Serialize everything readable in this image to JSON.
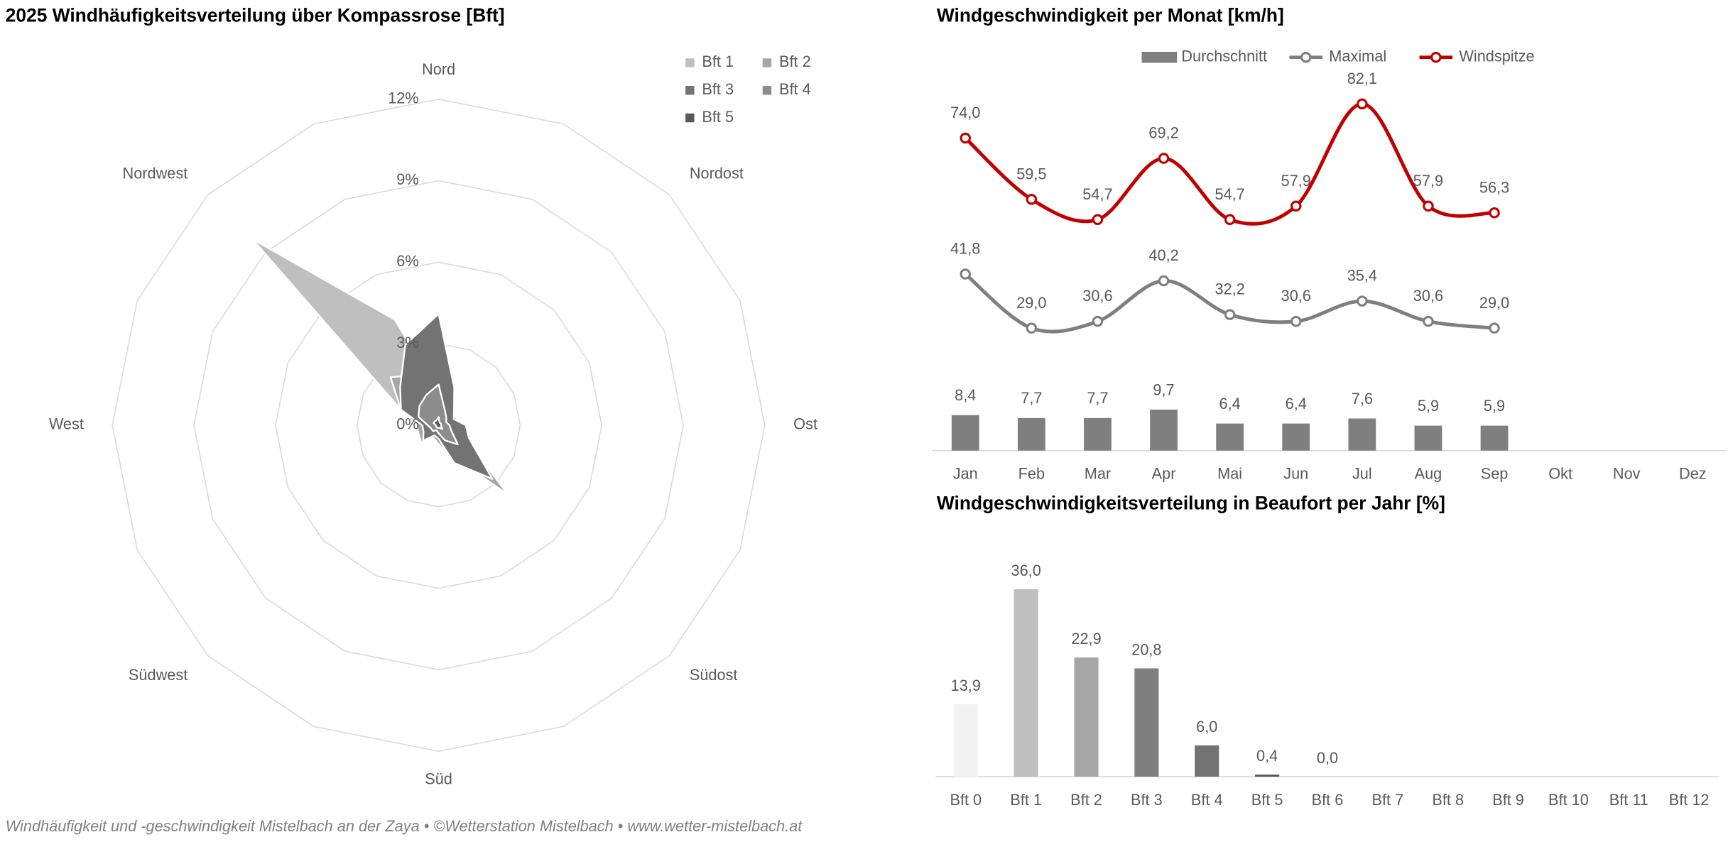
{
  "chart_data": [
    {
      "type": "radar",
      "title": "2025 Windhäufigkeitsverteilung über Kompassrose [Bft]",
      "categories": [
        "Nord",
        null,
        "Nordost",
        null,
        "Ost",
        null,
        "Südost",
        null,
        "Süd",
        null,
        "Südwest",
        null,
        "West",
        null,
        "Nordwest",
        null
      ],
      "series": [
        {
          "name": "Bft 1",
          "color": "#bfbfbf",
          "values": [
            1.2,
            0.8,
            0.6,
            0.5,
            0.6,
            0.8,
            2.5,
            0.8,
            0.6,
            0.5,
            0.8,
            0.6,
            0.8,
            1.5,
            9.7,
            4.2
          ]
        },
        {
          "name": "Bft 2",
          "color": "#a6a6a6",
          "values": [
            2.5,
            1.0,
            0.7,
            0.7,
            0.8,
            1.0,
            3.6,
            1.2,
            0.7,
            0.5,
            0.9,
            0.8,
            0.8,
            1.5,
            2.5,
            2.0
          ]
        },
        {
          "name": "Bft 3",
          "color": "#737373",
          "values": [
            4.1,
            1.5,
            0.8,
            0.6,
            1.0,
            1.2,
            2.8,
            1.5,
            0.5,
            0.4,
            0.8,
            0.6,
            0.6,
            1.5,
            2.0,
            3.2
          ]
        },
        {
          "name": "Bft 4",
          "color": "#8c8c8c",
          "values": [
            1.5,
            0.6,
            0.4,
            0.3,
            0.4,
            0.5,
            1.0,
            0.6,
            0.3,
            0.2,
            0.3,
            0.3,
            0.4,
            0.8,
            1.0,
            1.2
          ]
        },
        {
          "name": "Bft 5",
          "color": "#595959",
          "values": [
            0.3,
            0.1,
            0.1,
            0.1,
            0.1,
            0.1,
            0.2,
            0.1,
            0.1,
            0.1,
            0.1,
            0.1,
            0.1,
            0.2,
            0.2,
            0.2
          ]
        }
      ],
      "ylim": [
        0,
        12
      ],
      "yticks": [
        {
          "value": 0,
          "label": "0%"
        },
        {
          "value": 3,
          "label": "3%"
        },
        {
          "value": 6,
          "label": "6%"
        },
        {
          "value": 9,
          "label": "9%"
        },
        {
          "value": 12,
          "label": "12%"
        }
      ],
      "grid": true,
      "legend": "top-right"
    },
    {
      "type": "combo",
      "title": "Windgeschwindigkeit per Monat [km/h]",
      "categories": [
        "Jan",
        "Feb",
        "Mar",
        "Apr",
        "Mai",
        "Jun",
        "Jul",
        "Aug",
        "Sep",
        "Okt",
        "Nov",
        "Dez"
      ],
      "series": [
        {
          "name": "Durchschnitt",
          "type": "bar",
          "color": "#7f7f7f",
          "values": [
            8.4,
            7.7,
            7.7,
            9.7,
            6.4,
            6.4,
            7.6,
            5.9,
            5.9,
            null,
            null,
            null
          ],
          "value_labels": [
            "8,4",
            "7,7",
            "7,7",
            "9,7",
            "6,4",
            "6,4",
            "7,6",
            "5,9",
            "5,9",
            null,
            null,
            null
          ]
        },
        {
          "name": "Maximal",
          "type": "line",
          "color": "#7f7f7f",
          "values": [
            41.8,
            29.0,
            30.6,
            40.2,
            32.2,
            30.6,
            35.4,
            30.6,
            29.0,
            null,
            null,
            null
          ],
          "value_labels": [
            "41,8",
            "29,0",
            "30,6",
            "40,2",
            "32,2",
            "30,6",
            "35,4",
            "30,6",
            "29,0",
            null,
            null,
            null
          ]
        },
        {
          "name": "Windspitze",
          "type": "line",
          "color": "#c00000",
          "values": [
            74.0,
            59.5,
            54.7,
            69.2,
            54.7,
            57.9,
            82.1,
            57.9,
            56.3,
            null,
            null,
            null
          ],
          "value_labels": [
            "74,0",
            "59,5",
            "54,7",
            "69,2",
            "54,7",
            "57,9",
            "82,1",
            "57,9",
            "56,3",
            null,
            null,
            null
          ]
        }
      ],
      "ylim": [
        0,
        90
      ],
      "legend": "top"
    },
    {
      "type": "bar",
      "title": "Windgeschwindigkeitsverteilung in Beaufort per Jahr [%]",
      "categories": [
        "Bft 0",
        "Bft 1",
        "Bft 2",
        "Bft 3",
        "Bft 4",
        "Bft 5",
        "Bft 6",
        "Bft 7",
        "Bft 8",
        "Bft 9",
        "Bft 10",
        "Bft 11",
        "Bft 12"
      ],
      "values": [
        13.9,
        36.0,
        22.9,
        20.8,
        6.0,
        0.4,
        0.0,
        null,
        null,
        null,
        null,
        null,
        null
      ],
      "value_labels": [
        "13,9",
        "36,0",
        "22,9",
        "20,8",
        "6,0",
        "0,4",
        "0,0",
        null,
        null,
        null,
        null,
        null,
        null
      ],
      "colors": [
        "#f2f2f2",
        "#bfbfbf",
        "#a6a6a6",
        "#7f7f7f",
        "#737373",
        "#595959",
        "#404040"
      ],
      "ylim": [
        0,
        40
      ]
    }
  ],
  "footer": "Windhäufigkeit und -geschwindigkeit Mistelbach an der Zaya  •  ©Wetterstation Mistelbach  •  www.wetter-mistelbach.at"
}
